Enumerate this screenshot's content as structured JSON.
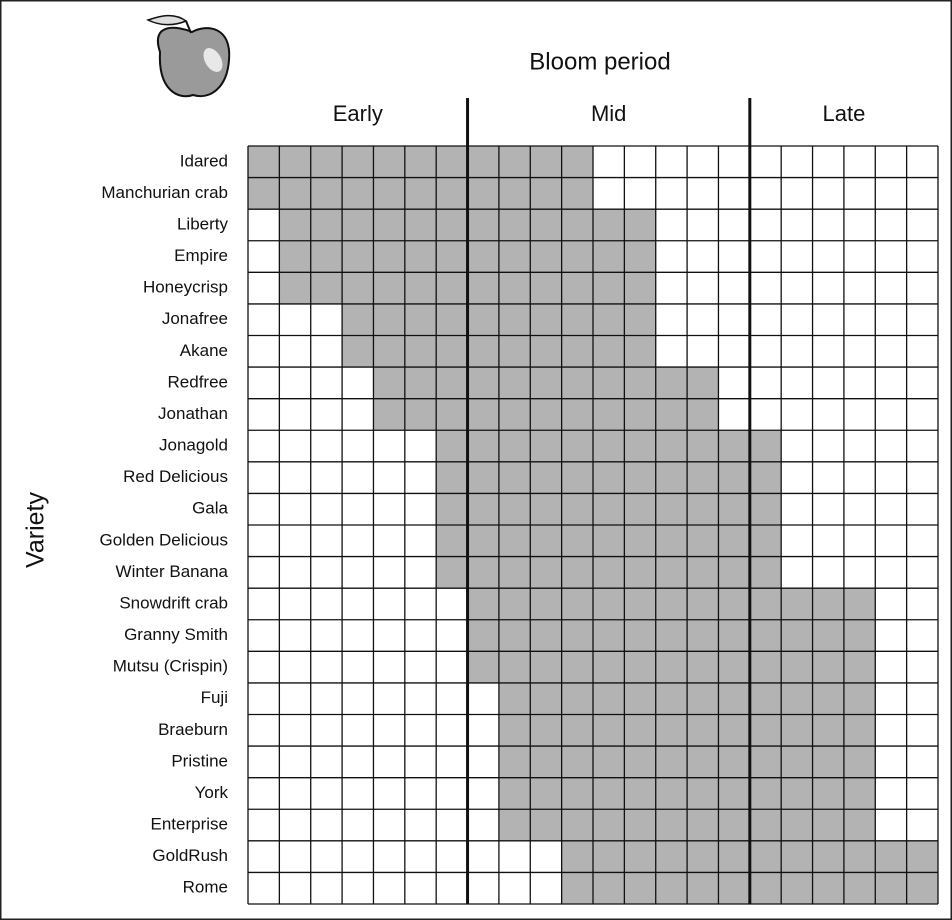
{
  "chart_data": {
    "type": "gantt",
    "title": "Bloom period",
    "y_label": "Variety",
    "categories": [
      "Idared",
      "Manchurian crab",
      "Liberty",
      "Empire",
      "Honeycrisp",
      "Jonafree",
      "Akane",
      "Redfree",
      "Jonathan",
      "Jonagold",
      "Red Delicious",
      "Gala",
      "Golden Delicious",
      "Winter Banana",
      "Snowdrift crab",
      "Granny Smith",
      "Mutsu (Crispin)",
      "Fuji",
      "Braeburn",
      "Pristine",
      "York",
      "Enterprise",
      "GoldRush",
      "Rome"
    ],
    "start": [
      0,
      0,
      1,
      1,
      1,
      3,
      3,
      4,
      4,
      6,
      6,
      6,
      6,
      6,
      7,
      7,
      7,
      8,
      8,
      8,
      8,
      8,
      10,
      10
    ],
    "end": [
      11,
      11,
      13,
      13,
      13,
      13,
      13,
      15,
      15,
      17,
      17,
      17,
      17,
      17,
      20,
      20,
      20,
      20,
      20,
      20,
      20,
      20,
      22,
      22
    ],
    "xlim": [
      0,
      22
    ],
    "periods": [
      {
        "label": "Early",
        "start": 0,
        "end": 7
      },
      {
        "label": "Mid",
        "start": 7,
        "end": 16
      },
      {
        "label": "Late",
        "start": 16,
        "end": 22
      }
    ],
    "color": "#b3b3b3",
    "grid": true
  }
}
